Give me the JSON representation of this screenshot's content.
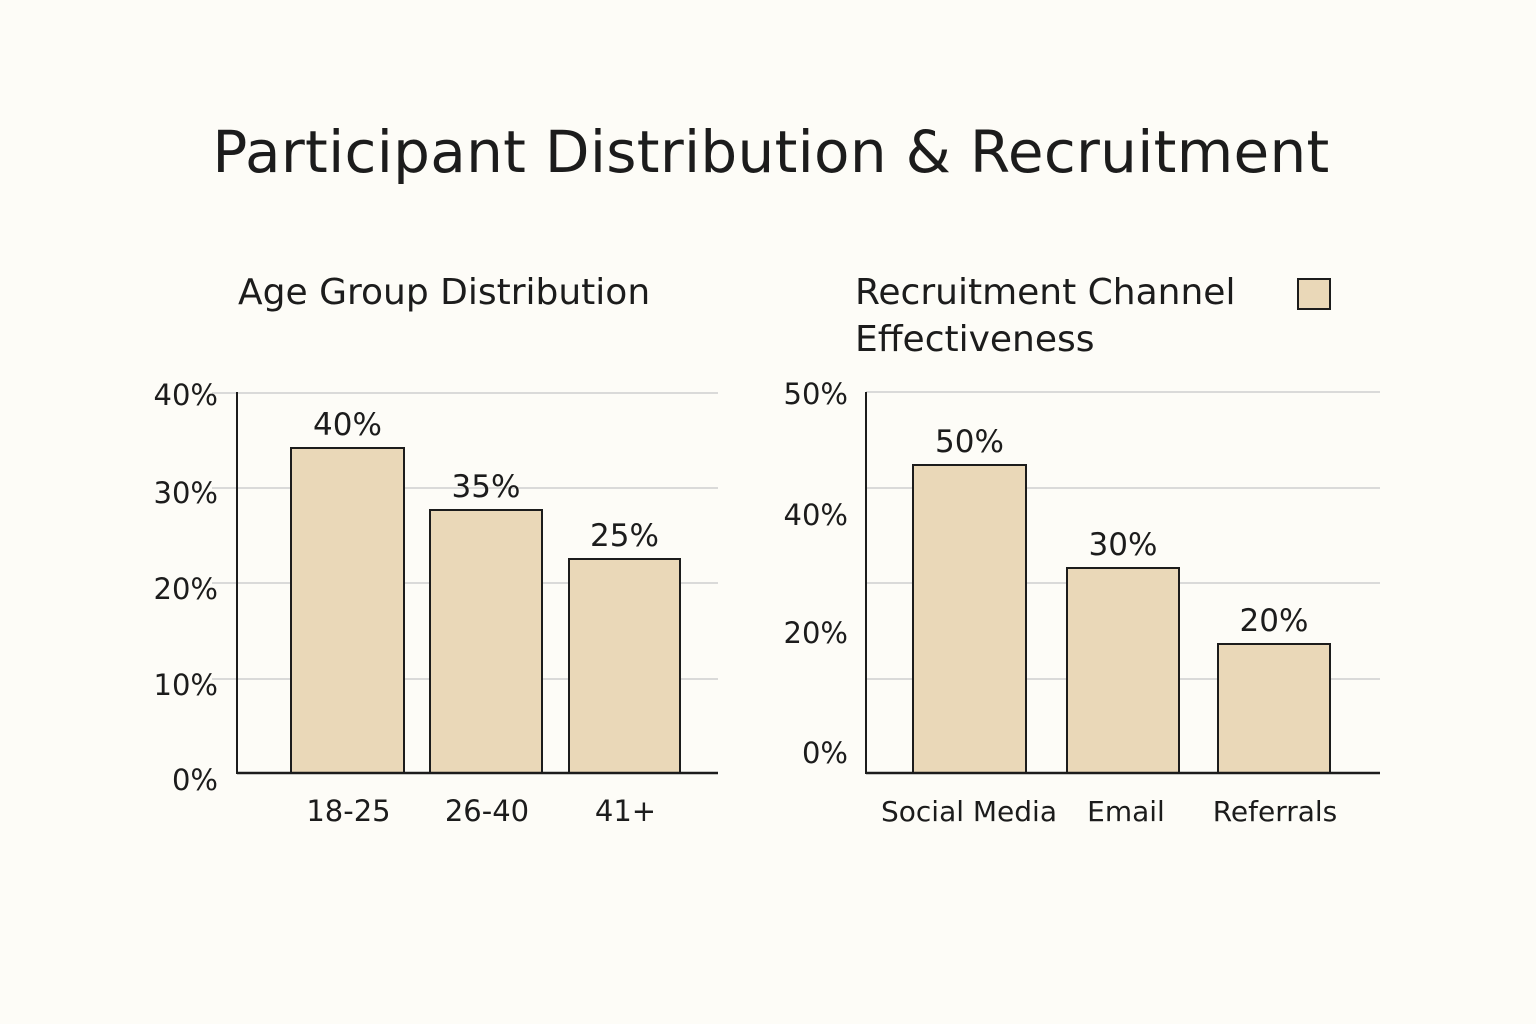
{
  "page_title": "Participant Distribution & Recruitment",
  "colors": {
    "background": "#fdfcf7",
    "bar_fill": "#ead8b8",
    "bar_stroke": "#1c1c1c",
    "grid": "#cfcfcf",
    "text": "#1c1c1c"
  },
  "chart_data": [
    {
      "type": "bar",
      "title": "Age Group Distribution",
      "categories": [
        "18-25",
        "26-40",
        "41+"
      ],
      "values": [
        40,
        35,
        25
      ],
      "data_labels": [
        "40%",
        "35%",
        "25%"
      ],
      "y_tick_labels": [
        "0%",
        "10%",
        "20%",
        "30%",
        "40%"
      ],
      "xlabel": "",
      "ylabel": "",
      "grid": true
    },
    {
      "type": "bar",
      "title": "Recruitment Channel Effectiveness",
      "categories": [
        "Social Media",
        "Email",
        "Referrals"
      ],
      "values": [
        50,
        30,
        20
      ],
      "data_labels": [
        "50%",
        "30%",
        "20%"
      ],
      "y_tick_labels": [
        "0%",
        "20%",
        "40%",
        "50%"
      ],
      "xlabel": "",
      "ylabel": "",
      "grid": true,
      "legend": {
        "placement": "top-right",
        "swatch_color": "#ead8b8"
      }
    }
  ]
}
